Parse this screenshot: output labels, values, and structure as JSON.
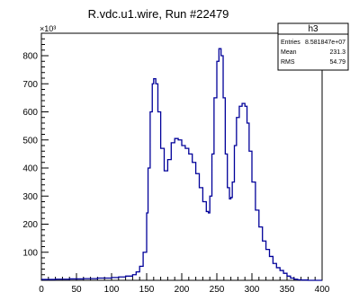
{
  "chart_data": {
    "type": "step-histogram",
    "title": "R.vdc.u1.wire, Run #22479",
    "xlabel": "",
    "ylabel": "",
    "y_multiplier": "×10³",
    "xlim": [
      0,
      400
    ],
    "ylim": [
      0,
      880
    ],
    "xticks": [
      "0",
      "50",
      "100",
      "150",
      "200",
      "250",
      "300",
      "350",
      "400"
    ],
    "yticks": [
      "100",
      "200",
      "300",
      "400",
      "500",
      "600",
      "700",
      "800"
    ],
    "grid": false,
    "line_color": "#000099",
    "stats_box": {
      "name": "h3",
      "rows": [
        {
          "label": "Entries",
          "value": "8.581847e+07"
        },
        {
          "label": "Mean",
          "value": "231.3"
        },
        {
          "label": "RMS",
          "value": "54.79"
        }
      ]
    },
    "series": [
      {
        "x": [
          0,
          20,
          40,
          60,
          80,
          100,
          110,
          120,
          130,
          135,
          140,
          145,
          150,
          152,
          155,
          158,
          160,
          163,
          166,
          170,
          175,
          180,
          185,
          190,
          195,
          200,
          205,
          210,
          215,
          220,
          225,
          230,
          235,
          238,
          240,
          243,
          246,
          250,
          253,
          256,
          259,
          262,
          265,
          268,
          270,
          272,
          275,
          278,
          282,
          286,
          290,
          293,
          296,
          300,
          305,
          310,
          315,
          320,
          325,
          330,
          335,
          340,
          345,
          350,
          355,
          360,
          365,
          370,
          380,
          400
        ],
        "y": [
          3,
          4,
          5,
          6,
          8,
          10,
          12,
          15,
          20,
          30,
          50,
          100,
          240,
          400,
          600,
          700,
          718,
          700,
          600,
          470,
          390,
          430,
          490,
          505,
          500,
          480,
          470,
          450,
          420,
          380,
          330,
          280,
          245,
          240,
          300,
          450,
          650,
          780,
          825,
          800,
          650,
          450,
          330,
          290,
          295,
          350,
          480,
          580,
          620,
          630,
          620,
          560,
          460,
          350,
          250,
          190,
          140,
          110,
          85,
          60,
          45,
          35,
          25,
          15,
          8,
          4,
          2,
          1,
          0,
          0
        ]
      }
    ]
  }
}
